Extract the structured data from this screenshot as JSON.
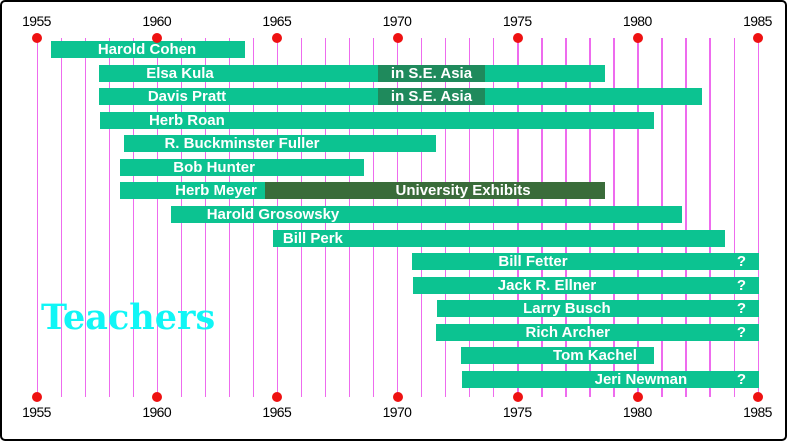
{
  "title": {
    "text": "Teachers",
    "color": "#10f6f6"
  },
  "axis": {
    "start_year": 1955,
    "end_year": 1985,
    "tick_years": [
      1955,
      1960,
      1965,
      1970,
      1975,
      1980,
      1985
    ],
    "gridline_color": "#ee6bee",
    "marker_color": "#ee1111",
    "label_color": "#000000"
  },
  "chart_data": {
    "type": "timeline",
    "unit": "year",
    "x_range": [
      1955,
      1985
    ],
    "gridline_every": 1,
    "bar_color": "#0cc391",
    "bar_text_color": "#ffffff",
    "open_end_marker": "?",
    "bars": [
      {
        "name": "Harold Cohen",
        "start": 1955.6,
        "end": 1963.68,
        "open_ended": false,
        "label_center": 1959.6,
        "segments": []
      },
      {
        "name": "Elsa Kula",
        "start": 1957.6,
        "end": 1978.65,
        "open_ended": false,
        "label_center": 1960.97,
        "segments": [
          {
            "label": "in S.E. Asia",
            "start": 1969.21,
            "end": 1973.66,
            "color": "#1f8a5c"
          }
        ]
      },
      {
        "name": "Davis Pratt",
        "start": 1957.6,
        "end": 1982.69,
        "open_ended": false,
        "label_center": 1961.26,
        "segments": [
          {
            "label": "in S.E. Asia",
            "start": 1969.21,
            "end": 1973.66,
            "color": "#1f8a5c"
          }
        ]
      },
      {
        "name": "Herb Roan",
        "start": 1957.64,
        "end": 1980.69,
        "open_ended": false,
        "label_center": 1961.26,
        "segments": []
      },
      {
        "name": "R. Buckminster Fuller",
        "start": 1958.64,
        "end": 1971.62,
        "open_ended": false,
        "label_center": 1963.55,
        "segments": []
      },
      {
        "name": "Bob Hunter",
        "start": 1958.47,
        "end": 1968.63,
        "open_ended": false,
        "label_center": 1962.39,
        "segments": []
      },
      {
        "name": "Herb Meyer",
        "start": 1958.47,
        "end": 1978.65,
        "open_ended": false,
        "label_center": 1962.47,
        "segments": [
          {
            "label": "University Exhibits",
            "start": 1964.51,
            "end": 1978.65,
            "color": "#3a6c3a",
            "label_center": 1972.75
          }
        ]
      },
      {
        "name": "Harold Grosowsky",
        "start": 1960.6,
        "end": 1981.86,
        "open_ended": false,
        "label_center": 1964.84,
        "segments": []
      },
      {
        "name": "Bill Perk",
        "start": 1964.84,
        "end": 1983.65,
        "open_ended": false,
        "label_center": 1966.5,
        "segments": []
      },
      {
        "name": "Bill Fetter",
        "start": 1970.62,
        "end": 1985.0,
        "open_ended": true,
        "label_center": 1975.66,
        "segments": []
      },
      {
        "name": "Jack R. Ellner",
        "start": 1970.67,
        "end": 1985.0,
        "open_ended": true,
        "label_center": 1976.24,
        "segments": []
      },
      {
        "name": "Larry Busch",
        "start": 1971.66,
        "end": 1985.0,
        "open_ended": true,
        "label_center": 1977.07,
        "segments": []
      },
      {
        "name": "Rich Archer",
        "start": 1971.62,
        "end": 1985.0,
        "open_ended": true,
        "label_center": 1977.11,
        "segments": []
      },
      {
        "name": "Tom Kachel",
        "start": 1972.66,
        "end": 1980.69,
        "open_ended": false,
        "label_center": 1978.24,
        "segments": []
      },
      {
        "name": "Jeri Newman",
        "start": 1972.7,
        "end": 1985.0,
        "open_ended": true,
        "label_center": 1980.15,
        "segments": []
      }
    ]
  }
}
